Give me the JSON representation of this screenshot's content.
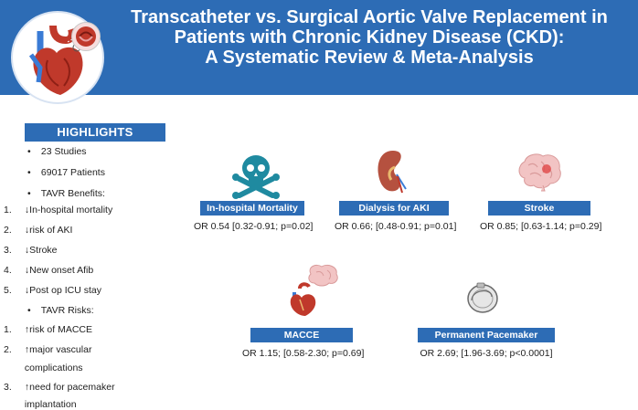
{
  "header": {
    "title_line1": "Transcatheter vs. Surgical Aortic Valve Replacement in",
    "title_line2": "Patients with Chronic Kidney Disease (CKD):",
    "title_line3": "A Systematic Review & Meta-Analysis"
  },
  "highlights": {
    "heading": "HIGHLIGHTS",
    "items": [
      {
        "marker": "•",
        "text": "23 Studies"
      },
      {
        "marker": "•",
        "text": "69017 Patients"
      },
      {
        "marker": "•",
        "text": "TAVR Benefits:"
      },
      {
        "marker": "1.",
        "text": "↓In-hospital mortality"
      },
      {
        "marker": "2.",
        "text": "↓risk of AKI"
      },
      {
        "marker": "3.",
        "text": "↓Stroke"
      },
      {
        "marker": "4.",
        "text": "↓New onset Afib"
      },
      {
        "marker": "5.",
        "text": "↓Post op ICU stay"
      },
      {
        "marker": "•",
        "text": "TAVR Risks:"
      },
      {
        "marker": "1.",
        "text": "↑risk of MACCE"
      },
      {
        "marker": "2.",
        "text": "↑major vascular"
      },
      {
        "marker": "",
        "text": "complications"
      },
      {
        "marker": "3.",
        "text": "↑need for pacemaker"
      },
      {
        "marker": "",
        "text": "implantation"
      }
    ]
  },
  "outcomes": {
    "mortality": {
      "label": "In-hospital Mortality",
      "stat": "OR 0.54 [0.32-0.91; p=0.02]"
    },
    "aki": {
      "label": "Dialysis for AKI",
      "stat": "OR 0.66; [0.48-0.91; p=0.01]"
    },
    "stroke": {
      "label": "Stroke",
      "stat": "OR 0.85; [0.63-1.14; p=0.29]"
    },
    "macce": {
      "label": "MACCE",
      "stat": "OR 1.15; [0.58-2.30; p=0.69]"
    },
    "pacemaker": {
      "label": "Permanent Pacemaker",
      "stat": "OR 2.69; [1.96-3.69; p<0.0001]"
    }
  },
  "colors": {
    "brand": "#2d6cb5",
    "heart_red": "#c0392b",
    "vessel_blue": "#3a7bd5",
    "skull": "#1f8aa0",
    "kidney": "#b5513f",
    "brain": "#f2c4c4"
  },
  "icons": [
    "heart-anatomy-icon",
    "valve-zoom-icon",
    "skull-crossbones-icon",
    "kidney-icon",
    "brain-icon",
    "heart-brain-icon",
    "pacemaker-icon"
  ]
}
